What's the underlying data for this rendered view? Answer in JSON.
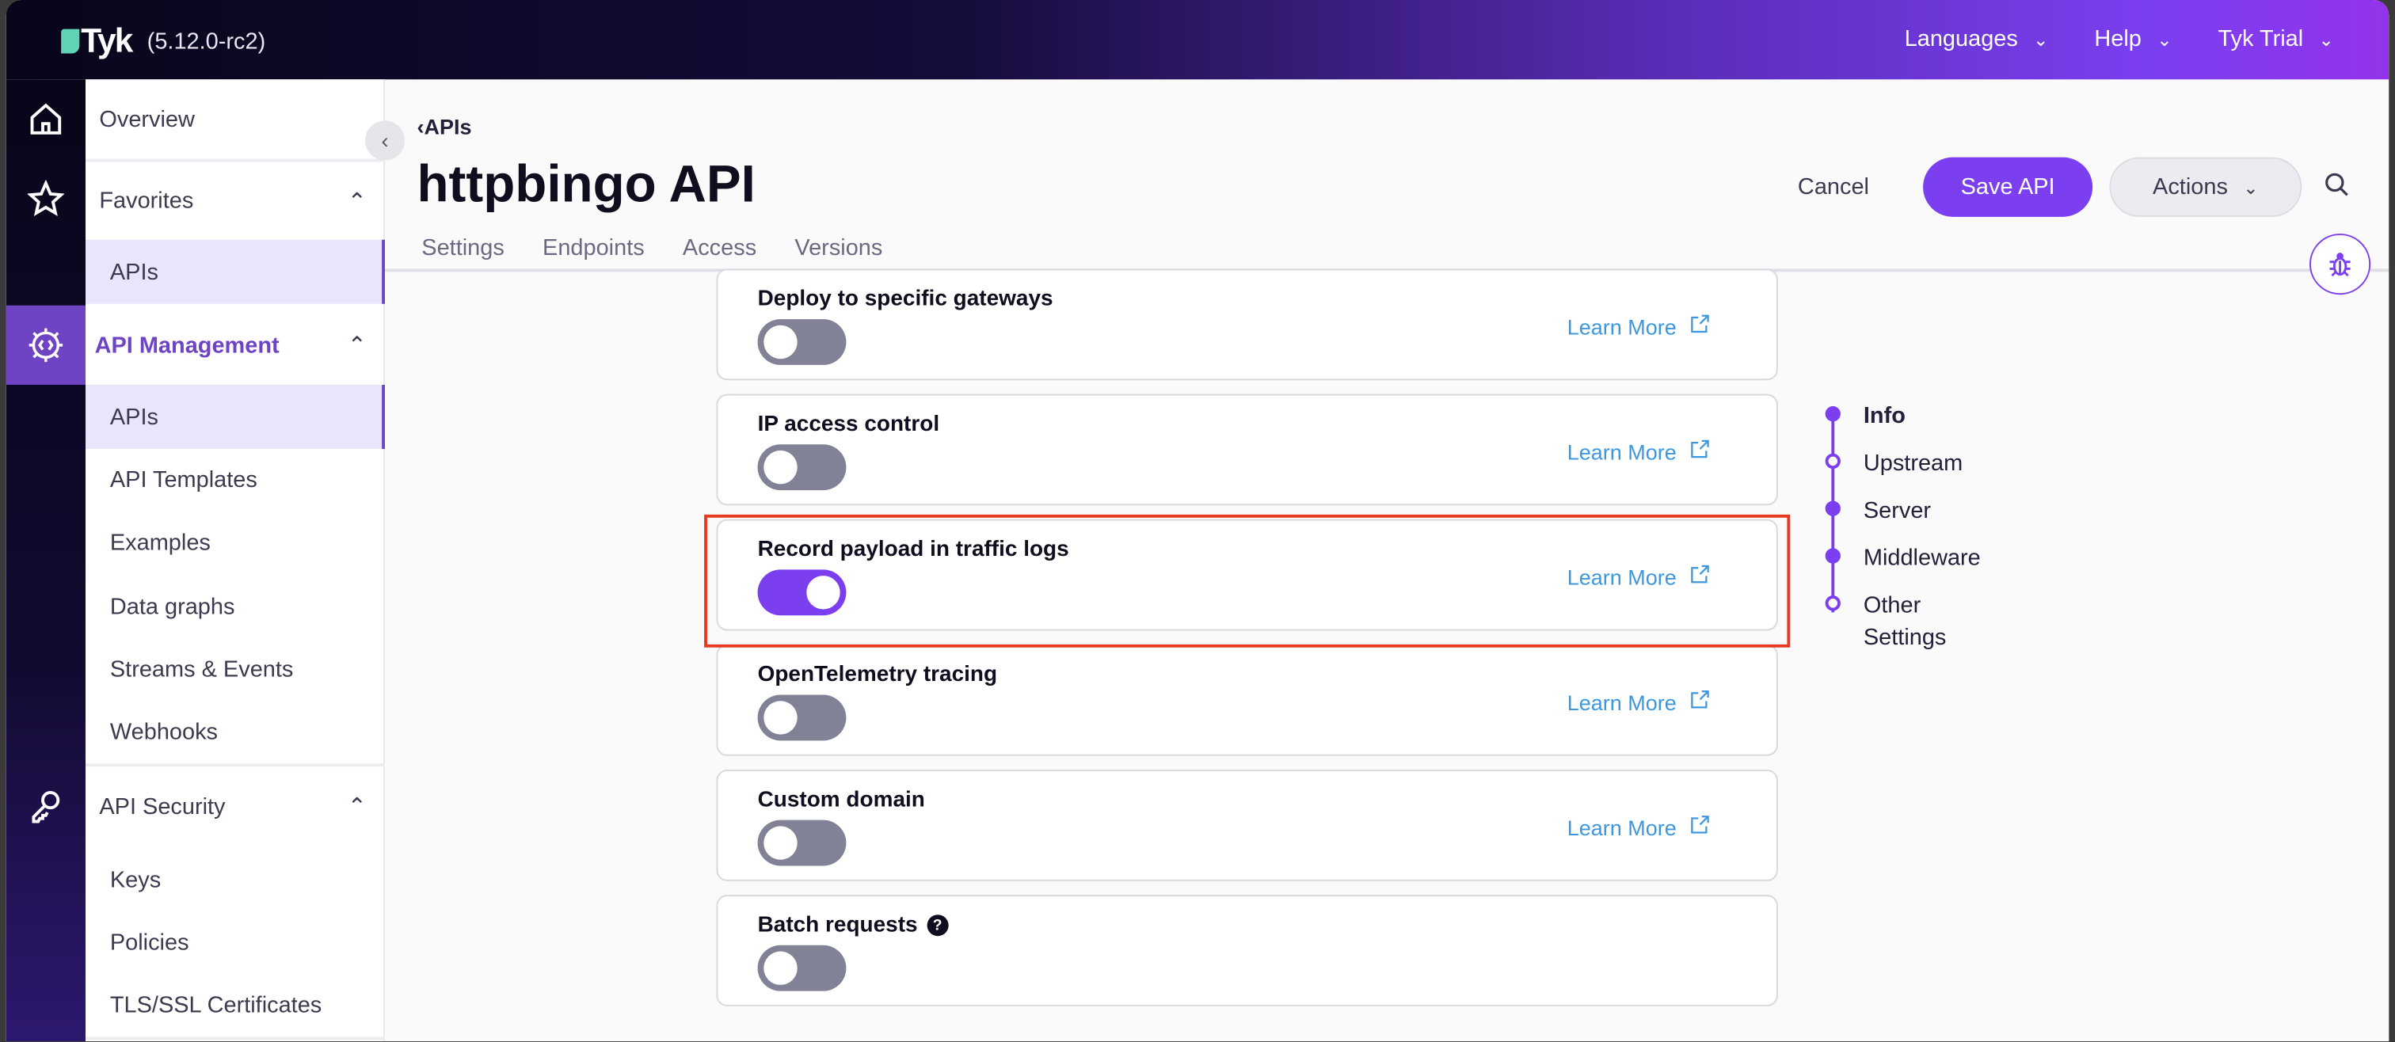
{
  "header": {
    "logo": "Tyk",
    "version": "(5.12.0-rc2)",
    "menus": [
      {
        "label": "Languages"
      },
      {
        "label": "Help"
      },
      {
        "label": "Tyk Trial"
      }
    ]
  },
  "rail": {
    "items": [
      {
        "icon": "home-icon"
      },
      {
        "icon": "star-icon"
      },
      {
        "icon": "api-management-gear-icon",
        "active": true
      },
      {
        "icon": "key-icon"
      }
    ]
  },
  "sidebar": {
    "overview": "Overview",
    "favorites": {
      "label": "Favorites",
      "items": [
        "APIs"
      ]
    },
    "api_management": {
      "label": "API Management",
      "items": [
        "APIs",
        "API Templates",
        "Examples",
        "Data graphs",
        "Streams & Events",
        "Webhooks"
      ],
      "active": "APIs"
    },
    "api_security": {
      "label": "API Security",
      "items": [
        "Keys",
        "Policies",
        "TLS/SSL Certificates"
      ]
    }
  },
  "breadcrumb": "APIs",
  "page_title": "httpbingo API",
  "tabs": [
    "Settings",
    "Endpoints",
    "Access",
    "Versions"
  ],
  "toolbar": {
    "cancel": "Cancel",
    "save": "Save API",
    "actions": "Actions"
  },
  "settings": [
    {
      "title": "Deploy to specific gateways",
      "enabled": false,
      "learn_more": "Learn More"
    },
    {
      "title": "IP access control",
      "enabled": false,
      "learn_more": "Learn More"
    },
    {
      "title": "Record payload in traffic logs",
      "enabled": true,
      "learn_more": "Learn More",
      "highlighted": true
    },
    {
      "title": "OpenTelemetry tracing",
      "enabled": false,
      "learn_more": "Learn More"
    },
    {
      "title": "Custom domain",
      "enabled": false,
      "learn_more": "Learn More"
    },
    {
      "title": "Batch requests",
      "enabled": false,
      "help_icon": true
    }
  ],
  "section_nav": [
    {
      "label": "Info",
      "filled": true
    },
    {
      "label": "Upstream",
      "filled": false
    },
    {
      "label": "Server",
      "filled": true
    },
    {
      "label": "Middleware",
      "filled": true
    },
    {
      "label": "Other Settings",
      "filled": false
    }
  ],
  "colors": {
    "accent": "#7b3ff0",
    "link": "#3b98e0",
    "highlight": "#e8391f",
    "toggle_off": "#828297"
  }
}
